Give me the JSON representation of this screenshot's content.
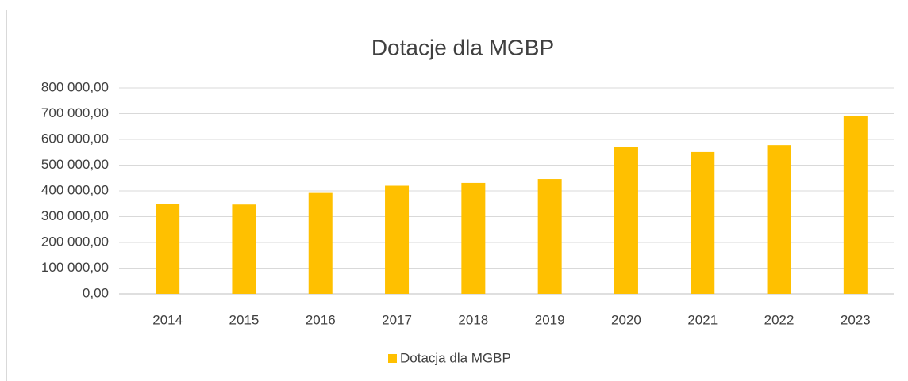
{
  "chart_data": {
    "type": "bar",
    "title": "Dotacje dla MGBP",
    "categories": [
      "2014",
      "2015",
      "2016",
      "2017",
      "2018",
      "2019",
      "2020",
      "2021",
      "2022",
      "2023"
    ],
    "series": [
      {
        "name": "Dotacja dla MGBP",
        "color": "#ffc000",
        "values": [
          350000,
          347000,
          392000,
          420000,
          431000,
          446000,
          572000,
          551000,
          578000,
          692000
        ]
      }
    ],
    "ylim": [
      0,
      800000
    ],
    "yticks": [
      {
        "value": 0,
        "label": "0,00"
      },
      {
        "value": 100000,
        "label": "100 000,00"
      },
      {
        "value": 200000,
        "label": "200 000,00"
      },
      {
        "value": 300000,
        "label": "300 000,00"
      },
      {
        "value": 400000,
        "label": "400 000,00"
      },
      {
        "value": 500000,
        "label": "500 000,00"
      },
      {
        "value": 600000,
        "label": "600 000,00"
      },
      {
        "value": 700000,
        "label": "700 000,00"
      },
      {
        "value": 800000,
        "label": "800 000,00"
      }
    ],
    "grid": true,
    "legend": "bottom"
  }
}
